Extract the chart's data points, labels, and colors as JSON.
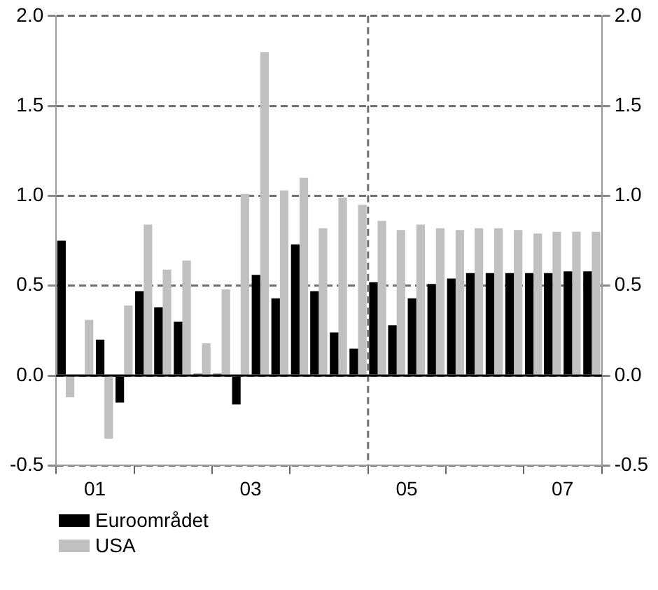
{
  "chart_data": {
    "type": "bar",
    "x": [
      "2001-02-15",
      "2001-05-15",
      "2001-08-15",
      "2001-11-15",
      "2002-02-15",
      "2002-05-15",
      "2002-08-15",
      "2002-11-15",
      "2003-02-15",
      "2003-05-15",
      "2003-08-15",
      "2003-11-15",
      "2004-02-15",
      "2004-05-15",
      "2004-08-15",
      "2004-11-15",
      "2005-02-15",
      "2005-05-15",
      "2005-08-15",
      "2005-11-15",
      "2006-02-15",
      "2006-05-15",
      "2006-08-15",
      "2006-11-15",
      "2007-02-15",
      "2007-05-15",
      "2007-08-15",
      "2007-11-15"
    ],
    "xlim": [
      "2001-01-01",
      "2008-01-01"
    ],
    "xticks": [
      {
        "value": "2001-01-01",
        "label": null
      },
      {
        "value": "2001-07-01",
        "label": "01"
      },
      {
        "value": "2002-01-01",
        "label": null
      },
      {
        "value": "2003-01-01",
        "label": null
      },
      {
        "value": "2003-07-01",
        "label": "03"
      },
      {
        "value": "2004-01-01",
        "label": null
      },
      {
        "value": "2005-01-01",
        "label": null
      },
      {
        "value": "2005-07-01",
        "label": "05"
      },
      {
        "value": "2006-01-01",
        "label": null
      },
      {
        "value": "2007-01-01",
        "label": null
      },
      {
        "value": "2007-07-01",
        "label": "07"
      },
      {
        "value": "2008-01-01",
        "label": null
      }
    ],
    "series": [
      {
        "name": "Euroområdet",
        "color": "#000000",
        "values": [
          0.75,
          0.0,
          0.2,
          -0.15,
          0.47,
          0.38,
          0.3,
          0.01,
          0.01,
          -0.16,
          0.56,
          0.43,
          0.73,
          0.47,
          0.24,
          0.15,
          0.52,
          0.28,
          0.43,
          0.51,
          0.54,
          0.57,
          0.57,
          0.57,
          0.57,
          0.57,
          0.58,
          0.58
        ]
      },
      {
        "name": "USA",
        "color": "#c0c0c0",
        "values": [
          -0.12,
          0.31,
          -0.35,
          0.39,
          0.84,
          0.59,
          0.64,
          0.18,
          0.48,
          1.01,
          1.8,
          1.03,
          1.1,
          0.82,
          0.99,
          0.95,
          0.86,
          0.81,
          0.84,
          0.82,
          0.81,
          0.82,
          0.82,
          0.81,
          0.79,
          0.8,
          0.8,
          0.8
        ]
      }
    ],
    "ylim": [
      -0.5,
      2.0
    ],
    "yticks": [
      {
        "value": -0.5,
        "label": "-0.5"
      },
      {
        "value": 0,
        "label": "0.0"
      },
      {
        "value": 0.5,
        "label": "0.5"
      },
      {
        "value": 1,
        "label": "1.0"
      },
      {
        "value": 1.5,
        "label": "1.5"
      },
      {
        "value": 2,
        "label": "2.0"
      }
    ],
    "y2lim": [
      -0.5,
      2.0
    ],
    "y2ticks": [
      {
        "value": -0.5,
        "label": "-0.5"
      },
      {
        "value": 0,
        "label": "0.0"
      },
      {
        "value": 0.5,
        "label": "0.5"
      },
      {
        "value": 1,
        "label": "1.0"
      },
      {
        "value": 1.5,
        "label": "1.5"
      },
      {
        "value": 2,
        "label": "2.0"
      }
    ],
    "ref_lines": [
      {
        "axis": "x",
        "value": "2005-01-01",
        "line_style": "dashed",
        "color": "#707070"
      }
    ],
    "grid": "y",
    "legend": "bottom left"
  }
}
